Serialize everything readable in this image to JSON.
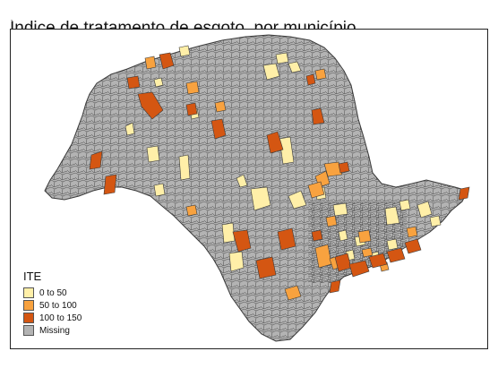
{
  "map": {
    "title": "Índice de tratamento de esgoto, por município",
    "legend": {
      "title": "ITE",
      "items": [
        {
          "label": "0 to 50",
          "color": "#ffefa8"
        },
        {
          "label": "50 to 100",
          "color": "#f8a23f"
        },
        {
          "label": "100 to 150",
          "color": "#d45612"
        },
        {
          "label": "Missing",
          "color": "#b3b3b3"
        }
      ]
    },
    "colors": {
      "missing": "#b3b3b3",
      "border": "#3a3a3a",
      "frame": "#222222"
    }
  }
}
